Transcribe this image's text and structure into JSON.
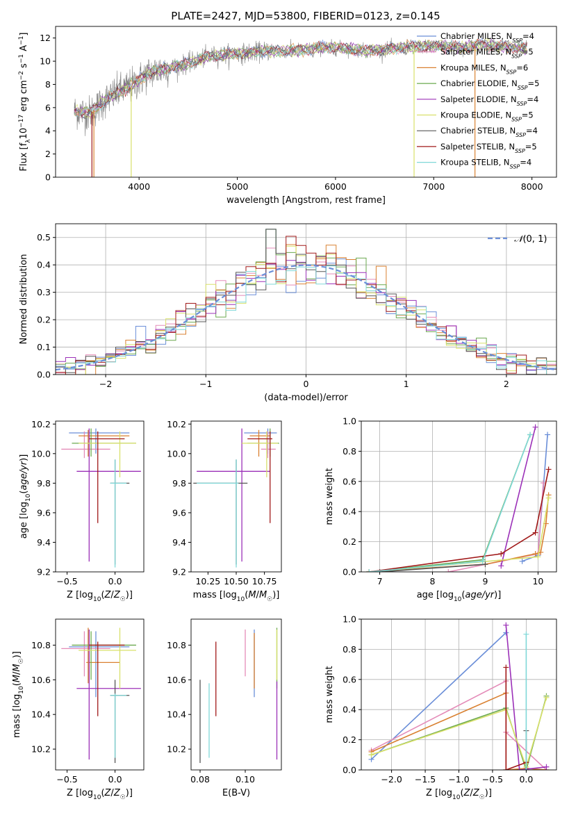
{
  "title": "PLATE=2427, MJD=53800, FIBERID=0123, z=0.145",
  "colors": {
    "Chabrier MILES": "#6a8ed8",
    "Salpeter MILES": "#e48bb8",
    "Kroupa MILES": "#d98030",
    "Chabrier ELODIE": "#6aa84f",
    "Salpeter ELODIE": "#9b30b8",
    "Kroupa ELODIE": "#d8e06a",
    "Chabrier STELIB": "#555555",
    "Salpeter STELIB": "#a01818",
    "Kroupa STELIB": "#7fd8d8",
    "normal": "#6a8ed8",
    "grid": "#b0b0b0",
    "data": "#808080"
  },
  "chart_data": [
    {
      "type": "line",
      "name": "spectrum",
      "xlabel": "wavelength [Angstrom, rest frame]",
      "ylabel": "Flux [f_λ 10^-17 erg cm^-2 s^-1 A^-1]",
      "xlim": [
        3150,
        8250
      ],
      "ylim": [
        0,
        13
      ],
      "xticks": [
        4000,
        5000,
        6000,
        7000,
        8000
      ],
      "yticks": [
        0,
        2,
        4,
        6,
        8,
        10,
        12
      ],
      "legend": "top-right",
      "continuum": {
        "x": [
          3340,
          3500,
          3650,
          3800,
          3950,
          4100,
          4300,
          4500,
          4700,
          4900,
          5100,
          5300,
          5500,
          5700,
          5900,
          6100,
          6300,
          6500,
          6700,
          6900,
          7100,
          7300,
          7500,
          7700,
          7900
        ],
        "y": [
          5.7,
          5.5,
          6.6,
          7.4,
          8.0,
          9.0,
          9.4,
          9.8,
          10.4,
          10.6,
          10.7,
          10.9,
          10.9,
          11.0,
          11.2,
          11.1,
          10.9,
          11.0,
          11.2,
          11.3,
          11.3,
          11.2,
          11.4,
          11.3,
          11.1
        ]
      },
      "series": [
        {
          "label": "Chabrier MILES, N_SSP=4",
          "text": "Chabrier MILES, N",
          "sub": "SSP",
          "suffix": "=4"
        },
        {
          "label": "Salpeter MILES, N_SSP=5",
          "text": "Salpeter MILES, N",
          "sub": "SSP",
          "suffix": "=5"
        },
        {
          "label": "Kroupa MILES, N_SSP=6",
          "text": "Kroupa MILES, N",
          "sub": "SSP",
          "suffix": "=6"
        },
        {
          "label": "Chabrier ELODIE, N_SSP=5",
          "text": "Chabrier ELODIE, N",
          "sub": "SSP",
          "suffix": "=5"
        },
        {
          "label": "Salpeter ELODIE, N_SSP=4",
          "text": "Salpeter ELODIE, N",
          "sub": "SSP",
          "suffix": "=4"
        },
        {
          "label": "Kroupa ELODIE, N_SSP=5",
          "text": "Kroupa ELODIE, N",
          "sub": "SSP",
          "suffix": "=5"
        },
        {
          "label": "Chabrier STELIB, N_SSP=4",
          "text": "Chabrier STELIB, N",
          "sub": "SSP",
          "suffix": "=4"
        },
        {
          "label": "Salpeter STELIB, N_SSP=5",
          "text": "Salpeter STELIB, N",
          "sub": "SSP",
          "suffix": "=5"
        },
        {
          "label": "Kroupa STELIB, N_SSP=4",
          "text": "Kroupa STELIB, N",
          "sub": "SSP",
          "suffix": "=4"
        }
      ],
      "drops": [
        {
          "x": 3520,
          "color": "Salpeter STELIB"
        },
        {
          "x": 3540,
          "color": "Kroupa MILES"
        },
        {
          "x": 3920,
          "color": "Kroupa ELODIE"
        },
        {
          "x": 6800,
          "color": "Kroupa ELODIE"
        },
        {
          "x": 7420,
          "color": "Kroupa MILES"
        }
      ]
    },
    {
      "type": "histogram",
      "name": "residuals",
      "xlabel": "(data-model)/error",
      "ylabel": "Normed distribution",
      "xlim": [
        -2.5,
        2.5
      ],
      "ylim": [
        0,
        0.55
      ],
      "xticks": [
        -2,
        -1,
        0,
        1,
        2
      ],
      "yticks": [
        0.0,
        0.1,
        0.2,
        0.3,
        0.4,
        0.5
      ],
      "bin_width": 0.1,
      "legend": {
        "label": "N(0,1)",
        "position": "top-right"
      },
      "peaks": {
        "-0.35": 0.53,
        "0.15": 0.47,
        "-0.05": 0.48
      }
    },
    {
      "type": "errorbar",
      "name": "age-vs-Z",
      "xlabel": "Z [log10(Z/Z☉)]",
      "ylabel": "age [log10(age/yr)]",
      "xlim": [
        -0.62,
        0.3
      ],
      "ylim": [
        9.2,
        10.22
      ],
      "xticks": [
        -0.5,
        0.0
      ],
      "yticks": [
        9.2,
        9.4,
        9.6,
        9.8,
        10.0,
        10.2
      ],
      "points": [
        {
          "s": "Chabrier MILES",
          "x": -0.2,
          "xl": -0.48,
          "xh": 0.15,
          "y": 10.14,
          "yl": 10.0,
          "yh": 10.17
        },
        {
          "s": "Salpeter MILES",
          "x": -0.32,
          "xl": -0.56,
          "xh": -0.05,
          "y": 10.03,
          "yl": 9.97,
          "yh": 10.15
        },
        {
          "s": "Kroupa MILES",
          "x": -0.28,
          "xl": -0.38,
          "xh": 0.15,
          "y": 10.12,
          "yl": 9.98,
          "yh": 10.16
        },
        {
          "s": "Chabrier ELODIE",
          "x": -0.25,
          "xl": -0.45,
          "xh": 0.22,
          "y": 10.07,
          "yl": 9.98,
          "yh": 10.17
        },
        {
          "s": "Salpeter ELODIE",
          "x": -0.27,
          "xl": -0.4,
          "xh": 0.27,
          "y": 9.88,
          "yl": 9.27,
          "yh": 10.17
        },
        {
          "s": "Kroupa ELODIE",
          "x": 0.05,
          "xl": -0.38,
          "xh": 0.22,
          "y": 10.07,
          "yl": 9.84,
          "yh": 10.15
        },
        {
          "s": "Chabrier STELIB",
          "x": 0.0,
          "xl": -0.05,
          "xh": 0.15,
          "y": 9.8,
          "yl": 9.25,
          "yh": 9.96
        },
        {
          "s": "Salpeter STELIB",
          "x": -0.18,
          "xl": -0.27,
          "xh": 0.1,
          "y": 10.1,
          "yl": 9.53,
          "yh": 10.15
        },
        {
          "s": "Kroupa STELIB",
          "x": 0.0,
          "xl": -0.05,
          "xh": 0.12,
          "y": 9.8,
          "yl": 9.23,
          "yh": 9.96
        }
      ]
    },
    {
      "type": "errorbar",
      "name": "age-vs-mass",
      "xlabel": "mass [log10(M/M☉)]",
      "ylabel": "",
      "xlim": [
        10.1,
        10.9
      ],
      "ylim": [
        9.2,
        10.22
      ],
      "xticks": [
        10.25,
        10.5,
        10.75
      ],
      "yticks": [
        9.2,
        9.4,
        9.6,
        9.8,
        10.0,
        10.2
      ],
      "points": [
        {
          "s": "Chabrier MILES",
          "x": 10.78,
          "xl": 10.57,
          "xh": 10.86,
          "y": 10.14,
          "yl": 10.0,
          "yh": 10.17
        },
        {
          "s": "Salpeter MILES",
          "x": 10.78,
          "xl": 10.72,
          "xh": 10.85,
          "y": 10.03,
          "yl": 9.97,
          "yh": 10.15
        },
        {
          "s": "Kroupa MILES",
          "x": 10.7,
          "xl": 10.62,
          "xh": 10.8,
          "y": 10.12,
          "yl": 9.98,
          "yh": 10.16
        },
        {
          "s": "Chabrier ELODIE",
          "x": 10.8,
          "xl": 10.6,
          "xh": 10.88,
          "y": 10.07,
          "yl": 9.98,
          "yh": 10.17
        },
        {
          "s": "Salpeter ELODIE",
          "x": 10.55,
          "xl": 10.15,
          "xh": 10.8,
          "y": 9.88,
          "yl": 9.27,
          "yh": 10.17
        },
        {
          "s": "Kroupa ELODIE",
          "x": 10.77,
          "xl": 10.55,
          "xh": 10.87,
          "y": 10.07,
          "yl": 9.84,
          "yh": 10.15
        },
        {
          "s": "Chabrier STELIB",
          "x": 10.5,
          "xl": 10.12,
          "xh": 10.6,
          "y": 9.8,
          "yl": 9.25,
          "yh": 9.96
        },
        {
          "s": "Salpeter STELIB",
          "x": 10.8,
          "xl": 10.6,
          "xh": 10.82,
          "y": 10.1,
          "yl": 9.53,
          "yh": 10.15
        },
        {
          "s": "Kroupa STELIB",
          "x": 10.5,
          "xl": 10.15,
          "xh": 10.52,
          "y": 9.8,
          "yl": 9.23,
          "yh": 9.96
        }
      ]
    },
    {
      "type": "line",
      "name": "mass-weight-vs-age",
      "xlabel": "age [log10(age/yr)]",
      "ylabel": "mass weight",
      "xlim": [
        6.65,
        10.35
      ],
      "ylim": [
        0,
        1
      ],
      "xticks": [
        7,
        8,
        9,
        10
      ],
      "yticks": [
        0.0,
        0.2,
        0.4,
        0.6,
        0.8,
        1.0
      ],
      "series": [
        {
          "s": "Chabrier MILES",
          "x": [
            9.7,
            10.0,
            10.18
          ],
          "y": [
            0.07,
            0.11,
            0.91
          ]
        },
        {
          "s": "Salpeter MILES",
          "x": [
            8.3,
            10.0,
            10.1
          ],
          "y": [
            0.0,
            0.12,
            0.59
          ]
        },
        {
          "s": "Kroupa MILES",
          "x": [
            6.8,
            9.0,
            9.95,
            10.05,
            10.15,
            10.2
          ],
          "y": [
            0.0,
            0.05,
            0.12,
            0.13,
            0.32,
            0.51
          ]
        },
        {
          "s": "Chabrier ELODIE",
          "x": [
            6.8,
            8.95,
            9.85
          ],
          "y": [
            0.0,
            0.08,
            0.91
          ]
        },
        {
          "s": "Salpeter ELODIE",
          "x": [
            9.3,
            9.95
          ],
          "y": [
            0.04,
            0.96
          ]
        },
        {
          "s": "Kroupa ELODIE",
          "x": [
            6.8,
            10.0,
            10.2
          ],
          "y": [
            0.0,
            0.1,
            0.49
          ]
        },
        {
          "s": "Chabrier STELIB",
          "x": [
            7.0,
            9.0
          ],
          "y": [
            0.0,
            0.05
          ]
        },
        {
          "s": "Salpeter STELIB",
          "x": [
            6.8,
            9.3,
            9.95,
            10.2
          ],
          "y": [
            0.0,
            0.12,
            0.26,
            0.68
          ]
        },
        {
          "s": "Kroupa STELIB",
          "x": [
            6.8,
            8.95,
            9.85
          ],
          "y": [
            0.0,
            0.07,
            0.91
          ]
        }
      ]
    },
    {
      "type": "errorbar",
      "name": "mass-vs-Z",
      "xlabel": "Z [log10(Z/Z☉)]",
      "ylabel": "mass [log10(M/M☉)]",
      "xlim": [
        -0.62,
        0.3
      ],
      "ylim": [
        10.08,
        10.95
      ],
      "xticks": [
        -0.5,
        0.0
      ],
      "yticks": [
        10.2,
        10.4,
        10.6,
        10.8
      ],
      "points": [
        {
          "s": "Chabrier MILES",
          "x": -0.2,
          "xl": -0.48,
          "xh": 0.15,
          "y": 10.79,
          "yl": 10.5,
          "yh": 10.88
        },
        {
          "s": "Salpeter MILES",
          "x": -0.32,
          "xl": -0.56,
          "xh": -0.05,
          "y": 10.78,
          "yl": 10.62,
          "yh": 10.88
        },
        {
          "s": "Kroupa MILES",
          "x": -0.28,
          "xl": -0.3,
          "xh": 0.05,
          "y": 10.7,
          "yl": 10.58,
          "yh": 10.9
        },
        {
          "s": "Chabrier ELODIE",
          "x": -0.25,
          "xl": -0.45,
          "xh": 0.22,
          "y": 10.8,
          "yl": 10.6,
          "yh": 10.88
        },
        {
          "s": "Salpeter ELODIE",
          "x": -0.27,
          "xl": -0.4,
          "xh": 0.27,
          "y": 10.55,
          "yl": 10.14,
          "yh": 10.89
        },
        {
          "s": "Kroupa ELODIE",
          "x": 0.05,
          "xl": -0.38,
          "xh": 0.22,
          "y": 10.77,
          "yl": 10.55,
          "yh": 10.9
        },
        {
          "s": "Chabrier STELIB",
          "x": 0.0,
          "xl": -0.05,
          "xh": 0.15,
          "y": 10.51,
          "yl": 10.12,
          "yh": 10.6
        },
        {
          "s": "Salpeter STELIB",
          "x": -0.18,
          "xl": -0.27,
          "xh": 0.1,
          "y": 10.8,
          "yl": 10.39,
          "yh": 10.82
        },
        {
          "s": "Kroupa STELIB",
          "x": 0.0,
          "xl": -0.05,
          "xh": 0.12,
          "y": 10.51,
          "yl": 10.15,
          "yh": 10.52
        }
      ]
    },
    {
      "type": "errorbar",
      "name": "mass-vs-EBV",
      "xlabel": "E(B-V)",
      "ylabel": "",
      "xlim": [
        0.076,
        0.116
      ],
      "ylim": [
        10.08,
        10.95
      ],
      "xticks": [
        0.08,
        0.1
      ],
      "yticks": [
        10.2,
        10.4,
        10.6,
        10.8
      ],
      "points": [
        {
          "s": "Chabrier MILES",
          "x": 0.104,
          "yl": 10.5,
          "yh": 10.89
        },
        {
          "s": "Salpeter MILES",
          "x": 0.1,
          "yl": 10.62,
          "yh": 10.89
        },
        {
          "s": "Kroupa MILES",
          "x": 0.104,
          "yl": 10.55,
          "yh": 10.87
        },
        {
          "s": "Chabrier ELODIE",
          "x": 0.114,
          "yl": 10.55,
          "yh": 10.9
        },
        {
          "s": "Salpeter ELODIE",
          "x": 0.114,
          "yl": 10.14,
          "yh": 10.59
        },
        {
          "s": "Kroupa ELODIE",
          "x": 0.114,
          "yl": 10.6,
          "yh": 10.89
        },
        {
          "s": "Chabrier STELIB",
          "x": 0.08,
          "yl": 10.12,
          "yh": 10.6
        },
        {
          "s": "Salpeter STELIB",
          "x": 0.087,
          "yl": 10.39,
          "yh": 10.82
        },
        {
          "s": "Kroupa STELIB",
          "x": 0.084,
          "yl": 10.15,
          "yh": 10.58
        }
      ]
    },
    {
      "type": "line",
      "name": "mass-weight-vs-Z",
      "xlabel": "Z [log10(Z/Z☉)]",
      "ylabel": "mass weight",
      "xlim": [
        -2.45,
        0.45
      ],
      "ylim": [
        0,
        1
      ],
      "xticks": [
        -2.0,
        -1.5,
        -1.0,
        -0.5,
        0.0
      ],
      "yticks": [
        0.0,
        0.2,
        0.4,
        0.6,
        0.8,
        1.0
      ],
      "series": [
        {
          "s": "Chabrier MILES",
          "x": [
            -2.3,
            -0.3
          ],
          "y": [
            0.07,
            0.91
          ]
        },
        {
          "s": "Salpeter MILES",
          "x": [
            -2.3,
            -0.3,
            -0.3,
            0.3
          ],
          "y": [
            0.13,
            0.59,
            0.25,
            0.0
          ]
        },
        {
          "s": "Kroupa MILES",
          "x": [
            -2.3,
            -0.3,
            -0.3,
            0.0,
            0.3
          ],
          "y": [
            0.12,
            0.51,
            0.0,
            0.01,
            0.0
          ]
        },
        {
          "s": "Chabrier ELODIE",
          "x": [
            -2.3,
            -0.3,
            0.0,
            0.3
          ],
          "y": [
            0.1,
            0.41,
            0.0,
            0.49
          ]
        },
        {
          "s": "Salpeter ELODIE",
          "x": [
            -0.3,
            -0.1,
            0.3
          ],
          "y": [
            0.96,
            0.0,
            0.02
          ]
        },
        {
          "s": "Kroupa ELODIE",
          "x": [
            -2.3,
            -0.3,
            0.0,
            0.3
          ],
          "y": [
            0.1,
            0.4,
            0.02,
            0.48
          ]
        },
        {
          "s": "Chabrier STELIB",
          "x": [
            0.0,
            0.0
          ],
          "y": [
            0.0,
            0.26
          ]
        },
        {
          "s": "Salpeter STELIB",
          "x": [
            -0.3,
            -0.3,
            0.0
          ],
          "y": [
            0.68,
            0.0,
            0.05
          ]
        },
        {
          "s": "Kroupa STELIB",
          "x": [
            0.0,
            0.0
          ],
          "y": [
            0.0,
            0.9
          ]
        }
      ]
    }
  ]
}
